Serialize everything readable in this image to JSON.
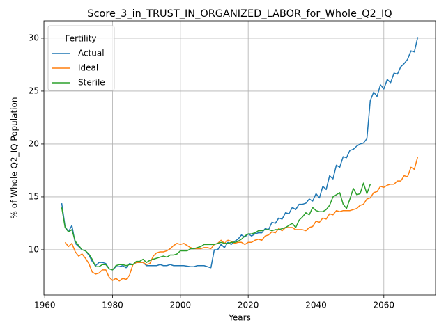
{
  "chart_data": {
    "type": "line",
    "title": "Score_3_in_TRUST_IN_ORGANIZED_LABOR_for_Whole_Q2_IQ",
    "x_label": "Years",
    "y_label": "% of Whole Q2_IQ Population",
    "legend_title": "Fertility",
    "legend_position": "upper left",
    "grid": true,
    "xlim": [
      1959.75,
      2075.25
    ],
    "ylim": [
      5.72,
      31.64
    ],
    "xticks": [
      1960,
      1980,
      2000,
      2020,
      2040,
      2060
    ],
    "yticks": [
      10,
      15,
      20,
      25,
      30
    ],
    "x": [
      1965,
      1966,
      1967,
      1968,
      1969,
      1970,
      1971,
      1972,
      1973,
      1974,
      1975,
      1976,
      1977,
      1978,
      1979,
      1980,
      1981,
      1982,
      1983,
      1984,
      1985,
      1986,
      1987,
      1988,
      1989,
      1990,
      1991,
      1992,
      1993,
      1994,
      1995,
      1996,
      1997,
      1998,
      1999,
      2000,
      2001,
      2002,
      2003,
      2004,
      2005,
      2006,
      2007,
      2008,
      2009,
      2010,
      2011,
      2012,
      2013,
      2014,
      2015,
      2016,
      2017,
      2018,
      2019,
      2020,
      2021,
      2022,
      2023,
      2024,
      2025,
      2026,
      2027,
      2028,
      2029,
      2030,
      2031,
      2032,
      2033,
      2034,
      2035,
      2036,
      2037,
      2038,
      2039,
      2040,
      2041,
      2042,
      2043,
      2044,
      2045,
      2046,
      2047,
      2048,
      2049,
      2050,
      2051,
      2052,
      2053,
      2054,
      2055,
      2056,
      2057,
      2058,
      2059,
      2060,
      2061,
      2062,
      2063,
      2064,
      2065,
      2066,
      2067,
      2068,
      2069,
      2070
    ],
    "series": [
      {
        "name": "Actual",
        "color": "#1f77b4",
        "values": [
          14.4,
          12.2,
          11.7,
          12.3,
          10.6,
          10.3,
          10.0,
          9.9,
          9.5,
          8.9,
          8.5,
          8.8,
          8.8,
          8.7,
          8.2,
          8.1,
          8.4,
          8.4,
          8.5,
          8.3,
          8.7,
          8.6,
          8.8,
          8.8,
          8.8,
          8.5,
          8.5,
          8.5,
          8.5,
          8.6,
          8.5,
          8.5,
          8.6,
          8.5,
          8.5,
          8.5,
          8.5,
          8.45,
          8.4,
          8.4,
          8.5,
          8.5,
          8.5,
          8.4,
          8.3,
          10.0,
          10.0,
          10.5,
          10.2,
          10.7,
          10.5,
          10.8,
          11.0,
          11.4,
          11.2,
          11.5,
          11.3,
          11.5,
          11.6,
          11.6,
          12.0,
          11.9,
          12.6,
          12.5,
          13.0,
          12.9,
          13.5,
          13.4,
          14.0,
          13.8,
          14.3,
          14.3,
          14.4,
          14.8,
          14.6,
          15.3,
          14.9,
          16.0,
          15.7,
          17.0,
          16.7,
          18.0,
          17.8,
          18.8,
          18.7,
          19.4,
          19.5,
          19.8,
          20.0,
          20.1,
          20.5,
          24.1,
          24.9,
          24.5,
          25.6,
          25.2,
          26.1,
          25.8,
          26.7,
          26.6,
          27.3,
          27.6,
          28.0,
          28.8,
          28.7,
          30.1
        ]
      },
      {
        "name": "Ideal",
        "color": "#ff7f0e",
        "values": [
          null,
          10.7,
          10.3,
          10.6,
          9.8,
          9.4,
          9.6,
          9.2,
          8.7,
          7.9,
          7.7,
          7.8,
          8.1,
          8.1,
          7.4,
          7.1,
          7.3,
          7.05,
          7.3,
          7.2,
          7.6,
          8.6,
          8.8,
          8.8,
          8.8,
          8.6,
          8.7,
          9.4,
          9.7,
          9.8,
          9.8,
          9.9,
          10.1,
          10.4,
          10.6,
          10.5,
          10.6,
          10.4,
          10.2,
          10.1,
          10.1,
          10.1,
          10.2,
          10.2,
          10.1,
          10.5,
          10.6,
          10.9,
          10.6,
          10.9,
          10.8,
          10.6,
          10.7,
          10.7,
          10.5,
          10.7,
          10.7,
          10.9,
          11.0,
          10.9,
          11.3,
          11.4,
          11.7,
          11.6,
          12.0,
          11.8,
          12.1,
          12.1,
          12.1,
          11.9,
          11.9,
          11.9,
          11.8,
          12.1,
          12.2,
          12.7,
          12.6,
          13.0,
          12.9,
          13.4,
          13.3,
          13.7,
          13.6,
          13.7,
          13.7,
          13.7,
          13.8,
          13.9,
          14.2,
          14.3,
          14.8,
          14.9,
          15.4,
          15.5,
          16.0,
          15.9,
          16.1,
          16.2,
          16.2,
          16.5,
          16.5,
          17.0,
          16.9,
          17.8,
          17.6,
          18.8
        ]
      },
      {
        "name": "Sterile",
        "color": "#2ca02c",
        "values": [
          14.0,
          12.1,
          11.7,
          11.9,
          10.8,
          10.4,
          10.0,
          9.9,
          9.6,
          9.1,
          8.4,
          8.4,
          8.6,
          8.6,
          8.2,
          8.1,
          8.5,
          8.6,
          8.6,
          8.5,
          8.6,
          8.6,
          8.9,
          8.9,
          9.1,
          8.8,
          9.0,
          9.1,
          9.2,
          9.3,
          9.4,
          9.3,
          9.5,
          9.5,
          9.6,
          9.9,
          9.9,
          9.9,
          10.1,
          10.1,
          10.2,
          10.3,
          10.5,
          10.5,
          10.5,
          10.5,
          10.6,
          10.7,
          10.6,
          10.6,
          10.7,
          10.7,
          10.8,
          11.0,
          11.3,
          11.5,
          11.5,
          11.6,
          11.8,
          11.8,
          11.9,
          11.9,
          11.8,
          11.9,
          11.9,
          12.0,
          12.1,
          12.3,
          12.5,
          12.1,
          12.8,
          13.1,
          13.5,
          13.3,
          14.0,
          13.7,
          13.6,
          13.6,
          13.8,
          14.2,
          15.0,
          15.2,
          15.4,
          14.3,
          13.9,
          14.8,
          15.8,
          15.2,
          15.3,
          16.3,
          15.3,
          16.2,
          null,
          null,
          null,
          null,
          null,
          null,
          null,
          null,
          null,
          null,
          null,
          null,
          null,
          null
        ]
      }
    ]
  }
}
